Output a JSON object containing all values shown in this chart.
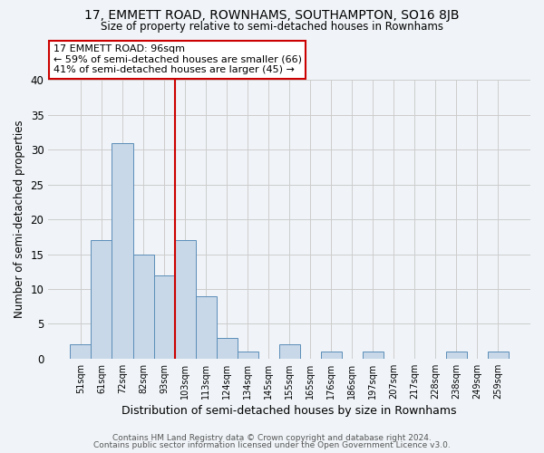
{
  "title": "17, EMMETT ROAD, ROWNHAMS, SOUTHAMPTON, SO16 8JB",
  "subtitle": "Size of property relative to semi-detached houses in Rownhams",
  "xlabel": "Distribution of semi-detached houses by size in Rownhams",
  "ylabel": "Number of semi-detached properties",
  "bin_labels": [
    "51sqm",
    "61sqm",
    "72sqm",
    "82sqm",
    "93sqm",
    "103sqm",
    "113sqm",
    "124sqm",
    "134sqm",
    "145sqm",
    "155sqm",
    "165sqm",
    "176sqm",
    "186sqm",
    "197sqm",
    "207sqm",
    "217sqm",
    "228sqm",
    "238sqm",
    "249sqm",
    "259sqm"
  ],
  "bar_values": [
    2,
    17,
    31,
    15,
    12,
    17,
    9,
    3,
    1,
    0,
    2,
    0,
    1,
    0,
    1,
    0,
    0,
    0,
    1,
    0,
    1
  ],
  "bar_color": "#c8d8e8",
  "bar_edge_color": "#5b8db8",
  "grid_color": "#cccccc",
  "bg_color": "#f0f4f8",
  "vline_color": "#cc0000",
  "annotation_title": "17 EMMETT ROAD: 96sqm",
  "annotation_line1": "← 59% of semi-detached houses are smaller (66)",
  "annotation_line2": "41% of semi-detached houses are larger (45) →",
  "annotation_box_color": "#ffffff",
  "annotation_box_edge": "#cc0000",
  "ylim": [
    0,
    40
  ],
  "yticks": [
    0,
    5,
    10,
    15,
    20,
    25,
    30,
    35,
    40
  ],
  "footer1": "Contains HM Land Registry data © Crown copyright and database right 2024.",
  "footer2": "Contains public sector information licensed under the Open Government Licence v3.0."
}
